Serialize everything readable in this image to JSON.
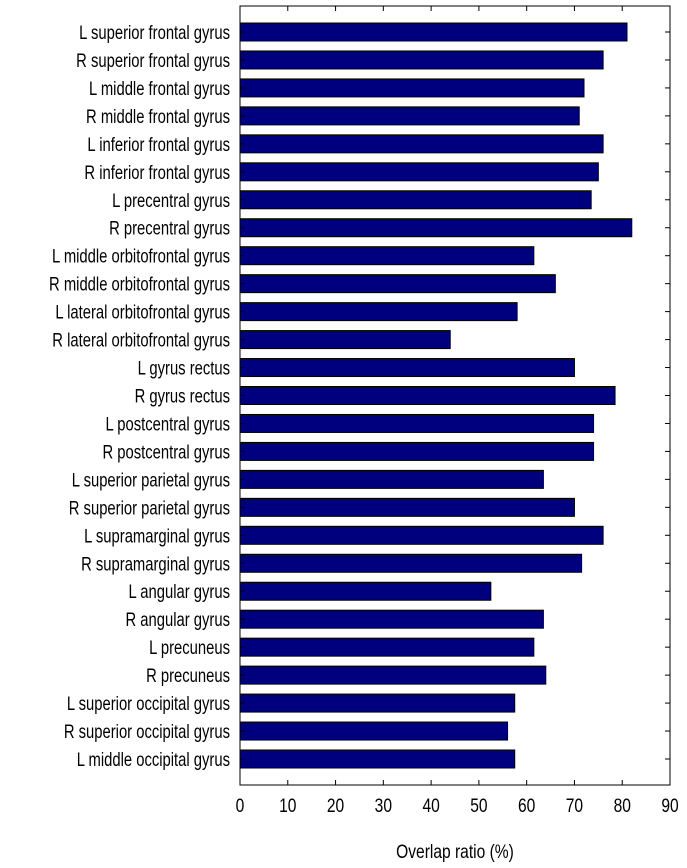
{
  "chart_data": {
    "type": "bar",
    "orientation": "horizontal",
    "xlabel": "Overlap ratio (%)",
    "ylabel": "",
    "title": "",
    "xlim": [
      0,
      90
    ],
    "xticks": [
      0,
      10,
      20,
      30,
      40,
      50,
      60,
      70,
      80,
      90
    ],
    "grid": false,
    "bar_color": "#00007f",
    "categories": [
      "L superior frontal gyrus",
      "R superior frontal gyrus",
      "L middle frontal gyrus",
      "R middle frontal gyrus",
      "L inferior frontal gyrus",
      "R inferior frontal gyrus",
      "L precentral gyrus",
      "R precentral gyrus",
      "L middle orbitofrontal gyrus",
      "R middle orbitofrontal gyrus",
      "L lateral orbitofrontal gyrus",
      "R lateral orbitofrontal gyrus",
      "L gyrus rectus",
      "R gyrus rectus",
      "L postcentral gyrus",
      "R postcentral gyrus",
      "L superior parietal gyrus",
      "R superior parietal gyrus",
      "L supramarginal gyrus",
      "R supramarginal gyrus",
      "L angular gyrus",
      "R angular gyrus",
      "L precuneus",
      "R precuneus",
      "L superior occipital gyrus",
      "R superior occipital gyrus",
      "L middle occipital gyrus"
    ],
    "values": [
      81,
      76,
      72,
      71,
      76,
      75,
      73.5,
      82,
      61.5,
      66,
      58,
      44,
      70,
      78.5,
      74,
      74,
      63.5,
      70,
      76,
      71.5,
      52.5,
      63.5,
      61.5,
      64,
      57.5,
      56,
      57.5
    ]
  }
}
